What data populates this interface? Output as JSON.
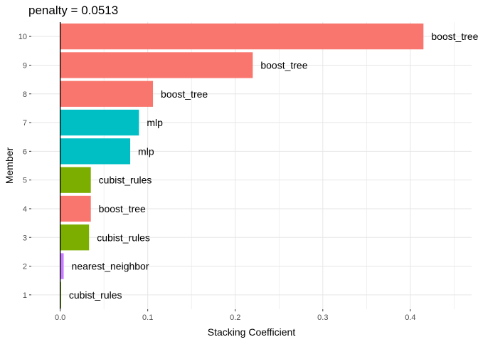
{
  "chart_data": {
    "type": "bar",
    "orientation": "horizontal",
    "title": "penalty = 0.0513",
    "xlabel": "Stacking Coefficient",
    "ylabel": "Member",
    "xlim": [
      -0.033,
      0.47
    ],
    "xticks": [
      0.0,
      0.1,
      0.2,
      0.3,
      0.4
    ],
    "xtick_labels": [
      "0.0",
      "0.1",
      "0.2",
      "0.3",
      "0.4"
    ],
    "categories": [
      "1",
      "2",
      "3",
      "4",
      "5",
      "6",
      "7",
      "8",
      "9",
      "10"
    ],
    "values": [
      0.001,
      0.004,
      0.033,
      0.035,
      0.035,
      0.08,
      0.09,
      0.106,
      0.22,
      0.415
    ],
    "bar_labels": [
      "cubist_rules",
      "nearest_neighbor",
      "cubist_rules",
      "boost_tree",
      "cubist_rules",
      "mlp",
      "mlp",
      "boost_tree",
      "boost_tree",
      "boost_tree"
    ],
    "model_colors": {
      "boost_tree": "#F8766D",
      "cubist_rules": "#7CAE00",
      "mlp": "#00BFC4",
      "nearest_neighbor": "#C77CFF"
    },
    "grid": true,
    "legend": "none"
  }
}
